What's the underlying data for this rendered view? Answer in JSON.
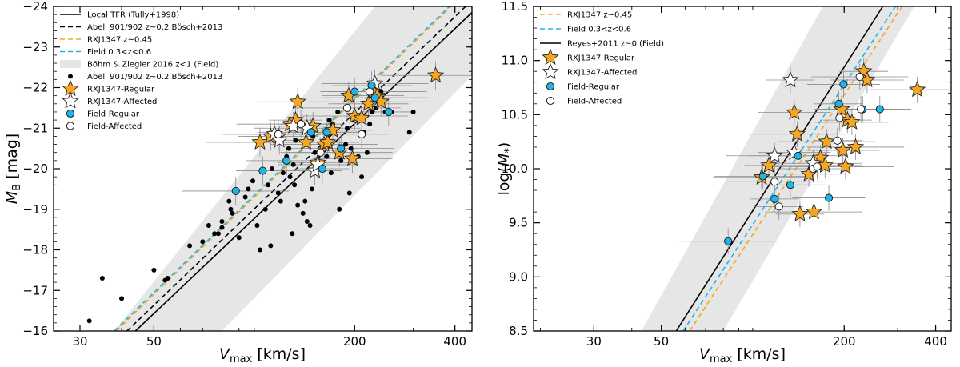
{
  "chart_data": [
    {
      "type": "scatter",
      "title": "",
      "xlabel": "V_max [km/s]",
      "ylabel": "M_B [mag]",
      "x_scale": "log",
      "xlim": [
        25,
        450
      ],
      "ylim": [
        -16,
        -24
      ],
      "x_ticks": [
        30,
        50,
        200,
        400
      ],
      "y_ticks": [
        -16,
        -17,
        -18,
        -19,
        -20,
        -21,
        -22,
        -23,
        -24
      ],
      "shaded_band": {
        "name": "Böhm & Ziegler 2016 z<1 (Field)",
        "polygon": [
          [
            38,
            -16
          ],
          [
            80,
            -16
          ],
          [
            450,
            -22.3
          ],
          [
            450,
            -24
          ],
          [
            230,
            -24
          ]
        ]
      },
      "lines": [
        {
          "name": "Local TFR (Tully+1998)",
          "color": "#000000",
          "dash": "",
          "points": [
            [
              44,
              -16
            ],
            [
              450,
              -23.85
            ]
          ]
        },
        {
          "name": "Abell 901/902 z~0.2 Bösch+2013",
          "color": "#000000",
          "dash": "6 4",
          "points": [
            [
              41.5,
              -16
            ],
            [
              450,
              -24.15
            ]
          ]
        },
        {
          "name": "RXJ1347 z~0.45",
          "color": "#f5a623",
          "dash": "6 4",
          "points": [
            [
              38.5,
              -16
            ],
            [
              390,
              -24
            ]
          ]
        },
        {
          "name": "Field 0.3<z<0.6",
          "color": "#1fb5e8",
          "dash": "6 4",
          "points": [
            [
              38.0,
              -16
            ],
            [
              385,
              -24
            ]
          ]
        }
      ],
      "series": [
        {
          "name": "Abell 901/902 z~0.2 Bösch+2013",
          "marker": "dot",
          "color": "#000000",
          "points": [
            [
              32,
              -16.25
            ],
            [
              35,
              -17.3
            ],
            [
              40,
              -16.8
            ],
            [
              50,
              -17.5
            ],
            [
              54,
              -17.25
            ],
            [
              55,
              -17.3
            ],
            [
              64,
              -18.1
            ],
            [
              70,
              -18.2
            ],
            [
              73,
              -18.6
            ],
            [
              76,
              -18.4
            ],
            [
              78,
              -18.4
            ],
            [
              80,
              -18.7
            ],
            [
              80,
              -18.55
            ],
            [
              84,
              -19.2
            ],
            [
              85,
              -19.0
            ],
            [
              86,
              -18.9
            ],
            [
              90,
              -18.3
            ],
            [
              94,
              -19.3
            ],
            [
              96,
              -19.5
            ],
            [
              99,
              -19.7
            ],
            [
              102,
              -18.6
            ],
            [
              104,
              -18.0
            ],
            [
              108,
              -19.0
            ],
            [
              110,
              -19.6
            ],
            [
              112,
              -18.1
            ],
            [
              113,
              -20.0
            ],
            [
              118,
              -19.4
            ],
            [
              120,
              -19.2
            ],
            [
              122,
              -19.9
            ],
            [
              125,
              -20.3
            ],
            [
              127,
              -20.5
            ],
            [
              128,
              -19.8
            ],
            [
              130,
              -18.4
            ],
            [
              131,
              -20.1
            ],
            [
              132,
              -19.6
            ],
            [
              133,
              -20.7
            ],
            [
              135,
              -19.1
            ],
            [
              137,
              -21.2
            ],
            [
              140,
              -18.9
            ],
            [
              142,
              -19.2
            ],
            [
              144,
              -18.7
            ],
            [
              147,
              -18.6
            ],
            [
              149,
              -19.5
            ],
            [
              150,
              -20.8
            ],
            [
              152,
              -20.4
            ],
            [
              155,
              -20.0
            ],
            [
              160,
              -20.6
            ],
            [
              165,
              -20.3
            ],
            [
              168,
              -21.2
            ],
            [
              170,
              -19.9
            ],
            [
              172,
              -21.1
            ],
            [
              178,
              -21.4
            ],
            [
              180,
              -19.0
            ],
            [
              182,
              -20.2
            ],
            [
              188,
              -20.6
            ],
            [
              190,
              -21.0
            ],
            [
              193,
              -19.4
            ],
            [
              195,
              -20.5
            ],
            [
              197,
              -21.2
            ],
            [
              205,
              -20.3
            ],
            [
              210,
              -19.8
            ],
            [
              213,
              -20.9
            ],
            [
              218,
              -20.4
            ],
            [
              222,
              -21.1
            ],
            [
              226,
              -21.4
            ],
            [
              232,
              -21.5
            ],
            [
              240,
              -21.9
            ],
            [
              247,
              -21.4
            ],
            [
              258,
              -21.4
            ],
            [
              292,
              -20.9
            ],
            [
              300,
              -21.4
            ]
          ]
        },
        {
          "name": "RXJ1347-Regular",
          "marker": "star",
          "color": "#f5a623",
          "points": [
            [
              104,
              -20.65
            ],
            [
              112,
              -20.8
            ],
            [
              118,
              -20.8
            ],
            [
              128,
              -21.1
            ],
            [
              133,
              -21.2
            ],
            [
              135,
              -21.65
            ],
            [
              143,
              -20.65
            ],
            [
              150,
              -21.05
            ],
            [
              155,
              -20.15
            ],
            [
              162,
              -20.6
            ],
            [
              166,
              -20.65
            ],
            [
              172,
              -20.95
            ],
            [
              180,
              -20.4
            ],
            [
              192,
              -21.8
            ],
            [
              197,
              -20.25
            ],
            [
              200,
              -21.3
            ],
            [
              210,
              -21.25
            ],
            [
              220,
              -21.6
            ],
            [
              228,
              -21.9
            ],
            [
              234,
              -21.8
            ],
            [
              240,
              -21.65
            ],
            [
              350,
              -22.3
            ]
          ]
        },
        {
          "name": "RXJ1347-Affected",
          "marker": "star",
          "color": "#ffffff",
          "points": [
            [
              115,
              -20.85
            ],
            [
              119,
              -20.7
            ],
            [
              131,
              -21.05
            ],
            [
              144,
              -21.0
            ],
            [
              152,
              -19.95
            ],
            [
              155,
              -20.1
            ],
            [
              230,
              -22.1
            ]
          ]
        },
        {
          "name": "Field-Regular",
          "marker": "circle",
          "color": "#1fb5e8",
          "points": [
            [
              88,
              -19.45
            ],
            [
              106,
              -19.95
            ],
            [
              125,
              -20.2
            ],
            [
              148,
              -20.9
            ],
            [
              160,
              -20.0
            ],
            [
              165,
              -20.9
            ],
            [
              182,
              -20.5
            ],
            [
              200,
              -21.9
            ],
            [
              225,
              -22.05
            ],
            [
              230,
              -21.75
            ],
            [
              253,
              -21.4
            ]
          ]
        },
        {
          "name": "Field-Affected",
          "marker": "circle",
          "color": "#ffffff",
          "points": [
            [
              118,
              -20.85
            ],
            [
              138,
              -21.1
            ],
            [
              158,
              -20.4
            ],
            [
              190,
              -21.5
            ],
            [
              210,
              -20.85
            ],
            [
              222,
              -21.9
            ]
          ]
        }
      ],
      "legend": {
        "position": "top-left",
        "entries": [
          {
            "label": "Local TFR (Tully+1998)",
            "kind": "line",
            "color": "#000000",
            "dash": ""
          },
          {
            "label": "Abell 901/902 z~0.2 Bösch+2013",
            "kind": "line",
            "color": "#000000",
            "dash": "6 4"
          },
          {
            "label": "RXJ1347 z~0.45",
            "kind": "line",
            "color": "#f5a623",
            "dash": "6 4"
          },
          {
            "label": "Field 0.3<z<0.6",
            "kind": "line",
            "color": "#1fb5e8",
            "dash": "6 4"
          },
          {
            "label": "Böhm & Ziegler 2016 z<1 (Field)",
            "kind": "patch",
            "color": "#e6e6e6"
          },
          {
            "label": "Abell 901/902 z~0.2 Bösch+2013",
            "kind": "dot",
            "color": "#000000"
          },
          {
            "label": "RXJ1347-Regular",
            "kind": "star",
            "color": "#f5a623"
          },
          {
            "label": "RXJ1347-Affected",
            "kind": "star",
            "color": "#ffffff"
          },
          {
            "label": "Field-Regular",
            "kind": "circle",
            "color": "#1fb5e8"
          },
          {
            "label": "Field-Affected",
            "kind": "circle",
            "color": "#ffffff"
          }
        ]
      }
    },
    {
      "type": "scatter",
      "title": "",
      "xlabel": "V_max [km/s]",
      "ylabel": "log(M_*)",
      "x_scale": "log",
      "xlim": [
        19,
        450
      ],
      "ylim": [
        8.5,
        11.5
      ],
      "x_ticks": [
        30,
        50,
        200,
        400
      ],
      "y_ticks": [
        8.5,
        9.0,
        9.5,
        10.0,
        10.5,
        11.0,
        11.5
      ],
      "shaded_band": {
        "name": "",
        "polygon": [
          [
            43,
            8.5
          ],
          [
            80,
            8.5
          ],
          [
            340,
            11.5
          ],
          [
            170,
            11.5
          ]
        ]
      },
      "lines": [
        {
          "name": "RXJ1347 z~0.45",
          "color": "#f5a623",
          "dash": "6 4",
          "points": [
            [
              62,
              8.5
            ],
            [
              310,
              11.5
            ]
          ]
        },
        {
          "name": "Field 0.3<z<0.6",
          "color": "#1fb5e8",
          "dash": "6 4",
          "points": [
            [
              59,
              8.5
            ],
            [
              295,
              11.5
            ]
          ]
        },
        {
          "name": "Reyes+2011 z~0 (Field)",
          "color": "#000000",
          "dash": "",
          "points": [
            [
              56,
              8.5
            ],
            [
              268,
              11.5
            ]
          ]
        }
      ],
      "series": [
        {
          "name": "RXJ1347-Regular",
          "marker": "star",
          "color": "#f5a623",
          "points": [
            [
              107,
              9.92
            ],
            [
              113,
              10.03
            ],
            [
              137,
              10.52
            ],
            [
              140,
              10.32
            ],
            [
              143,
              9.58
            ],
            [
              153,
              9.95
            ],
            [
              159,
              9.6
            ],
            [
              167,
              10.1
            ],
            [
              173,
              10.03
            ],
            [
              175,
              10.25
            ],
            [
              196,
              10.55
            ],
            [
              198,
              10.17
            ],
            [
              202,
              10.02
            ],
            [
              205,
              10.45
            ],
            [
              212,
              10.43
            ],
            [
              218,
              10.2
            ],
            [
              232,
              10.9
            ],
            [
              238,
              10.82
            ],
            [
              348,
              10.73
            ]
          ]
        },
        {
          "name": "RXJ1347-Affected",
          "marker": "star",
          "color": "#ffffff",
          "points": [
            [
              118,
              10.12
            ],
            [
              133,
              10.82
            ],
            [
              137,
              10.15
            ],
            [
              158,
              10.05
            ]
          ]
        },
        {
          "name": "Field-Regular",
          "marker": "circle",
          "color": "#1fb5e8",
          "points": [
            [
              83,
              9.33
            ],
            [
              118,
              9.72
            ],
            [
              133,
              9.85
            ],
            [
              141,
              10.12
            ],
            [
              192,
              10.6
            ],
            [
              199,
              10.78
            ],
            [
              230,
              10.55
            ],
            [
              262,
              10.55
            ],
            [
              178,
              9.73
            ],
            [
              108,
              9.93
            ]
          ]
        },
        {
          "name": "Field-Affected",
          "marker": "circle",
          "color": "#ffffff",
          "points": [
            [
              118,
              9.88
            ],
            [
              122,
              9.65
            ],
            [
              158,
              10.0
            ],
            [
              163,
              10.02
            ],
            [
              190,
              10.26
            ],
            [
              193,
              10.47
            ],
            [
              225,
              10.85
            ],
            [
              227,
              10.55
            ]
          ]
        }
      ],
      "legend": {
        "position": "top-left",
        "entries": [
          {
            "label": "RXJ1347 z~0.45",
            "kind": "line",
            "color": "#f5a623",
            "dash": "6 4"
          },
          {
            "label": "Field 0.3<z<0.6",
            "kind": "line",
            "color": "#1fb5e8",
            "dash": "6 4"
          },
          {
            "label": "Reyes+2011 z~0 (Field)",
            "kind": "line",
            "color": "#000000",
            "dash": ""
          },
          {
            "label": "RXJ1347-Regular",
            "kind": "star",
            "color": "#f5a623"
          },
          {
            "label": "RXJ1347-Affected",
            "kind": "star",
            "color": "#ffffff"
          },
          {
            "label": "Field-Regular",
            "kind": "circle",
            "color": "#1fb5e8"
          },
          {
            "label": "Field-Affected",
            "kind": "circle",
            "color": "#ffffff"
          }
        ]
      }
    }
  ],
  "labels": {
    "left_ylabel_main": "M",
    "left_ylabel_sub": "B",
    "left_ylabel_rest": " [mag]",
    "xlabel_main": "V",
    "xlabel_sub": "max",
    "xlabel_rest": " [km/s]",
    "right_ylabel_pre": "log(",
    "right_ylabel_main": "M",
    "right_ylabel_sub": "*",
    "right_ylabel_post": ")"
  }
}
